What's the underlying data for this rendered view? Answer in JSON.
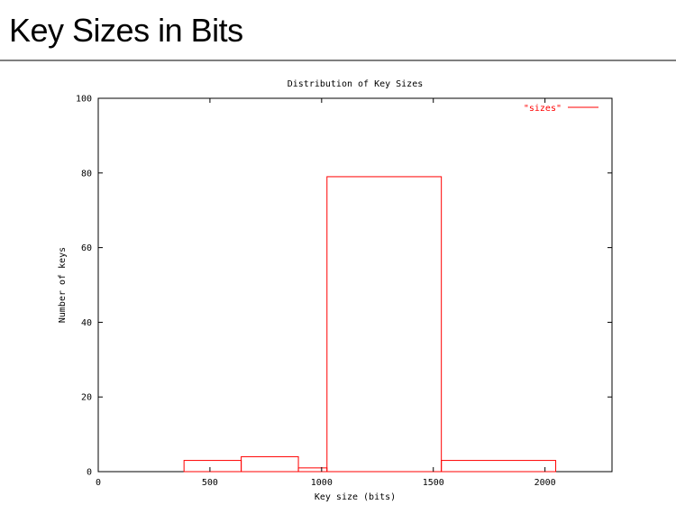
{
  "slide": {
    "title": "Key Sizes in Bits"
  },
  "chart_data": {
    "type": "bar",
    "title": "Distribution of Key Sizes",
    "xlabel": "Key size (bits)",
    "ylabel": "Number of keys",
    "xlim": [
      0,
      2300
    ],
    "ylim": [
      0,
      100
    ],
    "xticks": [
      0,
      500,
      1000,
      1500,
      2000
    ],
    "yticks": [
      0,
      20,
      40,
      60,
      80,
      100
    ],
    "grid": false,
    "legend_position": "top-right",
    "series": [
      {
        "name": "\"sizes\"",
        "color": "#ff0000",
        "bins": [
          {
            "x0": 384,
            "x1": 640,
            "value": 3
          },
          {
            "x0": 640,
            "x1": 896,
            "value": 4
          },
          {
            "x0": 896,
            "x1": 1024,
            "value": 1
          },
          {
            "x0": 1024,
            "x1": 1536,
            "value": 79
          },
          {
            "x0": 1536,
            "x1": 2048,
            "value": 3
          }
        ]
      }
    ]
  }
}
